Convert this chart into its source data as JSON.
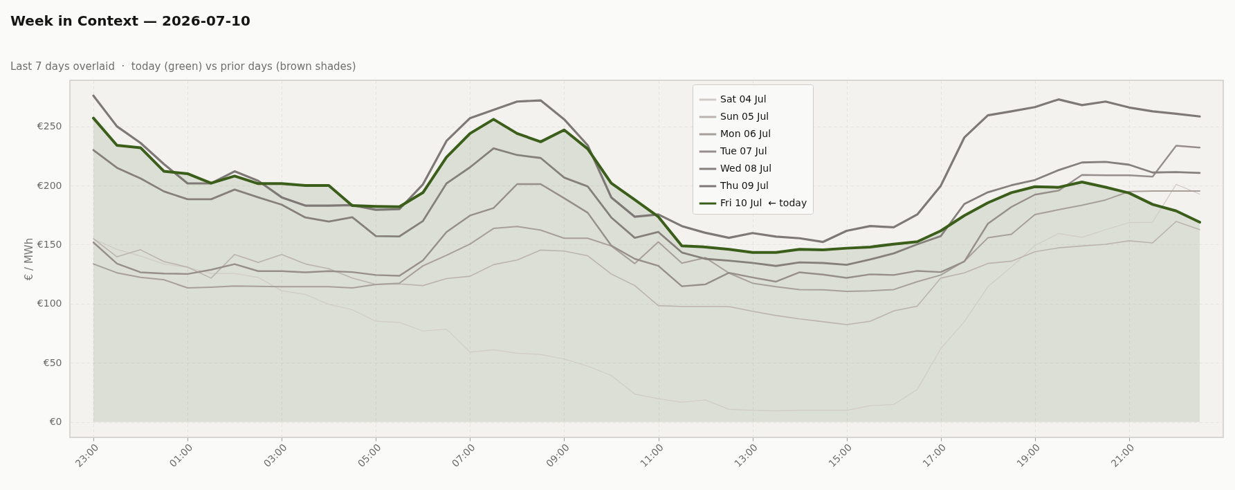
{
  "chart_data": {
    "type": "line",
    "title": "Week in Context — 2026-07-10",
    "subtitle": "Last 7 days overlaid  ·  today (green) vs prior days (brown shades)",
    "ylabel": "€ / MWh",
    "categories": [
      "23:00",
      null,
      null,
      null,
      "01:00",
      null,
      null,
      null,
      "03:00",
      null,
      null,
      null,
      "05:00",
      null,
      null,
      null,
      "07:00",
      null,
      null,
      null,
      "09:00",
      null,
      null,
      null,
      "11:00",
      null,
      null,
      null,
      "13:00",
      null,
      null,
      null,
      "15:00",
      null,
      null,
      null,
      "17:00",
      null,
      null,
      null,
      "19:00",
      null,
      null,
      null,
      "21:00",
      null,
      null,
      null
    ],
    "ylim": [
      -13,
      289
    ],
    "yticks": [
      {
        "value": 0,
        "label": "€0"
      },
      {
        "value": 50,
        "label": "€50"
      },
      {
        "value": 100,
        "label": "€100"
      },
      {
        "value": 150,
        "label": "€150"
      },
      {
        "value": 200,
        "label": "€200"
      },
      {
        "value": 250,
        "label": "€250"
      }
    ],
    "grid": true,
    "legend": "top",
    "series": [
      {
        "name": "Sat 04 Jul",
        "color": "#d0cbc6",
        "values": [
          154.8,
          146,
          140.4,
          133.5,
          130.8,
          125.6,
          125.6,
          122.3,
          111,
          107.9,
          99.6,
          95,
          85.2,
          84.2,
          77,
          78.5,
          59.2,
          61.1,
          58.2,
          57.2,
          53.3,
          47.3,
          39.4,
          23.7,
          19.7,
          16.8,
          18.7,
          10.8,
          9.9,
          9.5,
          9.9,
          9.9,
          9.9,
          13.8,
          14.8,
          27.6,
          62.1,
          84.8,
          114.4,
          131.2,
          149.3,
          159.4,
          156.2,
          162.7,
          168.6,
          169,
          201,
          192.7
        ]
      },
      {
        "name": "Sun 05 Jul",
        "color": "#bbb4ae",
        "values": [
          155,
          139.7,
          145.7,
          135.7,
          131,
          121.7,
          141.7,
          135,
          141.7,
          133.7,
          129.7,
          121.7,
          116.4,
          116.8,
          115.4,
          121.3,
          123.3,
          133.1,
          137,
          145.4,
          144.6,
          140.6,
          125.2,
          115.4,
          98.4,
          97.8,
          97.8,
          97.6,
          93.7,
          90.1,
          87.2,
          84.8,
          82.4,
          85.2,
          94,
          98,
          121.7,
          126.2,
          134.1,
          136,
          144,
          147.3,
          148.9,
          150.3,
          153.3,
          151.5,
          169.6,
          162.7
        ]
      },
      {
        "name": "Mon 06 Jul",
        "color": "#a79f9a",
        "values": [
          133.7,
          126.2,
          122.3,
          120.3,
          113.4,
          114,
          115,
          114.8,
          114.4,
          114.4,
          114.4,
          113.4,
          116.4,
          117.4,
          132.1,
          141,
          150.5,
          163.7,
          165.3,
          162.3,
          155.4,
          155.4,
          148.9,
          134,
          152.3,
          134.3,
          139,
          126,
          117.4,
          114.4,
          112,
          111.8,
          110.5,
          111,
          112,
          118.7,
          124.3,
          136,
          155.8,
          158.8,
          175.5,
          179.5,
          183.4,
          187.8,
          194.9,
          195.3,
          195.3,
          195.3
        ]
      },
      {
        "name": "Tue 07 Jul",
        "color": "#968e8a",
        "values": [
          151.9,
          134,
          126.6,
          125.6,
          125.2,
          128.8,
          133.5,
          127.6,
          127.6,
          126.6,
          127.6,
          126.8,
          124.3,
          123.7,
          136.7,
          160.7,
          174.6,
          180.9,
          201.2,
          201.2,
          189.3,
          177,
          149.3,
          138,
          132.1,
          114.8,
          116.4,
          126.2,
          122.3,
          118.7,
          126.6,
          124.7,
          121.9,
          124.9,
          124.3,
          127.8,
          126.8,
          135.7,
          167.7,
          181.9,
          192.3,
          195.7,
          209,
          208.7,
          208.7,
          207.5,
          233.7,
          232.1
        ]
      },
      {
        "name": "Wed 08 Jul",
        "color": "#85807c",
        "values": [
          230,
          215,
          206,
          195,
          188.4,
          188.4,
          196.6,
          190,
          183.8,
          173,
          169.6,
          173.2,
          157.2,
          157,
          170,
          201.8,
          215.4,
          231.4,
          225.8,
          223.3,
          206.7,
          199.2,
          173,
          155.8,
          160.7,
          143.4,
          138,
          136.5,
          134.5,
          132,
          135,
          134.5,
          133,
          137.5,
          142.6,
          150.3,
          157.2,
          184.4,
          194.3,
          200.2,
          204.7,
          213,
          219.5,
          220,
          217.6,
          211,
          211.4,
          210.7
        ]
      },
      {
        "name": "Thu 09 Jul",
        "color": "#7e7976",
        "values": [
          276,
          250,
          236,
          218,
          201.8,
          201.8,
          212,
          204,
          190,
          183,
          183,
          183.4,
          179.5,
          180,
          201,
          237.7,
          257,
          264,
          271,
          272,
          256,
          234,
          190,
          173.6,
          175.5,
          165.7,
          160,
          155.8,
          159.8,
          156.8,
          155.4,
          152.3,
          161.7,
          165.7,
          164.7,
          175.5,
          199.8,
          240.6,
          259.4,
          262.7,
          266.3,
          272.8,
          268,
          271,
          266,
          262.7,
          260.7,
          258.4
        ]
      },
      {
        "name": "Fri 10 Jul  ← today",
        "color": "#3b5e1b",
        "type": "area",
        "values": [
          257,
          234,
          232,
          212,
          210,
          202,
          208,
          201.6,
          201.6,
          200,
          200,
          183,
          182.4,
          182,
          194,
          224,
          244,
          256,
          244,
          237,
          247,
          231,
          202,
          188,
          173.6,
          149,
          148,
          146,
          143.4,
          143.4,
          146,
          145.6,
          147,
          148,
          150.5,
          152.5,
          161.7,
          174.6,
          185.4,
          194,
          199,
          198.5,
          203,
          198.6,
          193.7,
          184,
          178.5,
          169
        ]
      }
    ]
  }
}
